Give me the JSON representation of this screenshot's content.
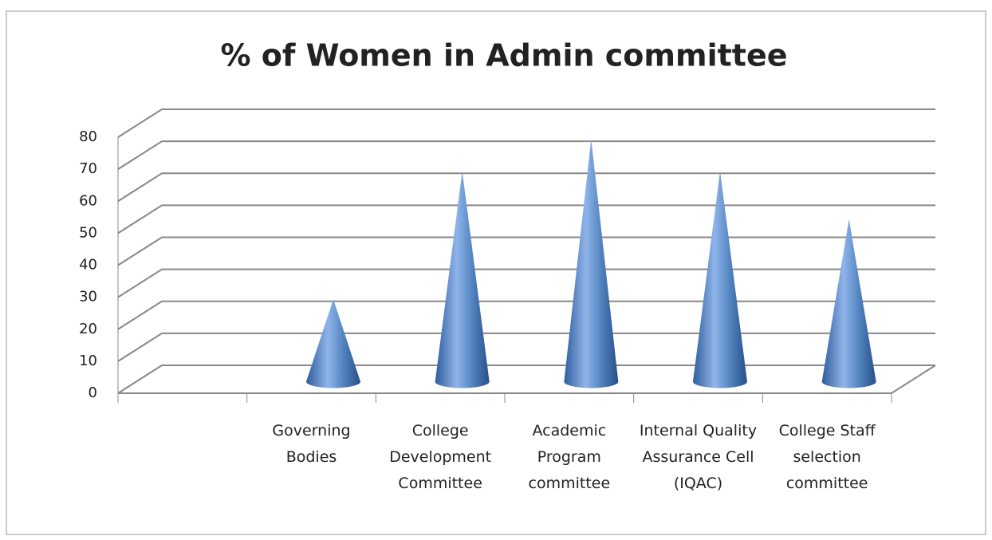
{
  "chart_data": {
    "type": "cone",
    "title": "% of Women in Admin committee",
    "categories": [
      null,
      "Governing Bodies",
      "College Development Committee",
      "Academic Program committee",
      "Internal Quality Assurance Cell (IQAC)",
      "College Staff selection committee"
    ],
    "values": [
      null,
      25,
      65,
      75,
      65,
      50
    ],
    "color": "#4f81bd",
    "ylim": [
      0,
      80
    ],
    "yticks": [
      0,
      10,
      20,
      30,
      40,
      50,
      60,
      70,
      80
    ],
    "grid": true
  }
}
